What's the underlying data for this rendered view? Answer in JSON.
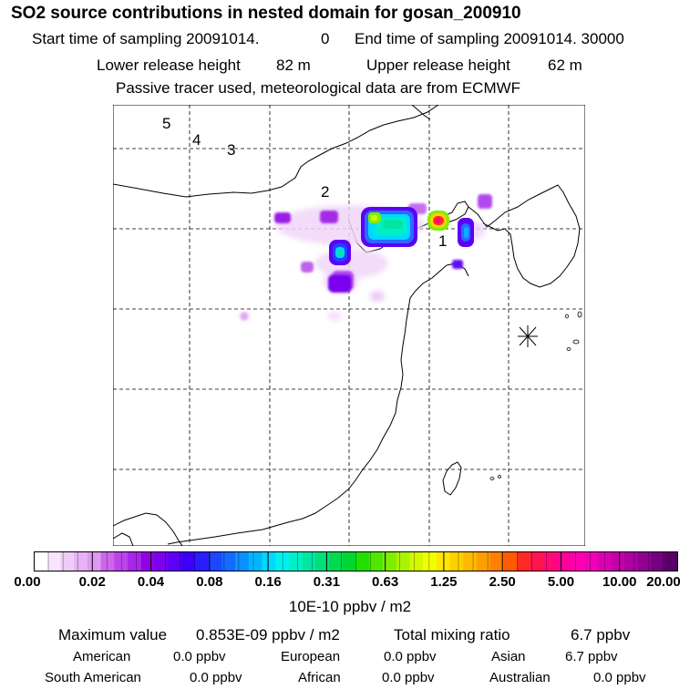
{
  "title": "SO2 source contributions in nested domain for gosan_200910",
  "header": {
    "start_label": "Start time of sampling 20091014.",
    "start_value": "0",
    "end_label": "End time of sampling 20091014. 30000",
    "lower_label": "Lower release height",
    "lower_value": "82 m",
    "upper_label": "Upper release height",
    "upper_value": "62 m",
    "tracer_note": "Passive tracer used, meteorological data are from ECMWF"
  },
  "map": {
    "contour_labels": [
      "1",
      "2",
      "3",
      "4",
      "5"
    ],
    "receptor_marker": "gosan-receptor-star"
  },
  "colorbar": {
    "ticks": [
      "0.00",
      "0.02",
      "0.04",
      "0.08",
      "0.16",
      "0.31",
      "0.63",
      "1.25",
      "2.50",
      "5.00",
      "10.00",
      "20.00"
    ],
    "unit": "10E-10 ppbv / m2",
    "colors": [
      "#ffffff",
      "#f7e6fb",
      "#efccf7",
      "#e6b3f4",
      "#de99f0",
      "#cc66ec",
      "#bb44ea",
      "#a826e8",
      "#9400e6",
      "#7a00ee",
      "#5c00f6",
      "#3c00fa",
      "#2a1cff",
      "#1f45ff",
      "#156bff",
      "#0b91ff",
      "#00b6ff",
      "#00d8ff",
      "#00f0ee",
      "#00eec8",
      "#00e6a0",
      "#00e078",
      "#00da52",
      "#00d632",
      "#20e000",
      "#50e600",
      "#7eee00",
      "#aaf200",
      "#d4f800",
      "#f2ff00",
      "#ffe800",
      "#ffd000",
      "#ffb800",
      "#ff9e00",
      "#ff8000",
      "#ff5a00",
      "#ff2a28",
      "#ff1450",
      "#ff0878",
      "#ff009a",
      "#ff00b0",
      "#f000b8",
      "#dc00b4",
      "#c400ac",
      "#ac00a2",
      "#900092",
      "#740080",
      "#580066"
    ]
  },
  "summary": {
    "max_label": "Maximum value",
    "max_value": "0.853E-09 ppbv / m2",
    "total_label": "Total mixing ratio",
    "total_value": "6.7 ppbv",
    "regions": [
      {
        "name": "American",
        "value": "0.0 ppbv"
      },
      {
        "name": "European",
        "value": "0.0 ppbv"
      },
      {
        "name": "Asian",
        "value": "6.7 ppbv"
      },
      {
        "name": "South American",
        "value": "0.0 ppbv"
      },
      {
        "name": "African",
        "value": "0.0 ppbv"
      },
      {
        "name": "Australian",
        "value": "0.0 ppbv"
      }
    ]
  }
}
